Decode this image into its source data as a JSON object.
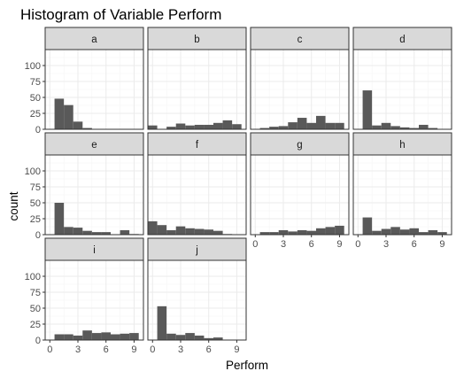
{
  "chart_data": {
    "type": "bar",
    "title": "Histogram of Variable Perform",
    "xlabel": "Perform",
    "ylabel": "count",
    "xlim": [
      -0.5,
      10
    ],
    "ylim": [
      0,
      125
    ],
    "x_ticks": [
      0,
      3,
      6,
      9
    ],
    "y_ticks": [
      0,
      25,
      50,
      75,
      100
    ],
    "grid": true,
    "bin_width": 1,
    "bin_centers": [
      0,
      1,
      2,
      3,
      4,
      5,
      6,
      7,
      8,
      9
    ],
    "colors": {
      "bar": "#595959",
      "strip_fill": "#d9d9d9",
      "panel_border": "#333333",
      "grid_major": "#ebebeb",
      "grid_minor": "#f5f5f5"
    },
    "panels": [
      {
        "name": "a",
        "values": [
          0,
          48,
          38,
          12,
          2,
          0,
          0,
          0,
          0,
          0
        ]
      },
      {
        "name": "b",
        "values": [
          6,
          0,
          4,
          9,
          6,
          7,
          7,
          10,
          14,
          8
        ]
      },
      {
        "name": "c",
        "values": [
          0,
          2,
          4,
          5,
          11,
          18,
          10,
          21,
          10,
          10
        ]
      },
      {
        "name": "d",
        "values": [
          0,
          61,
          6,
          10,
          5,
          3,
          2,
          7,
          2,
          0
        ]
      },
      {
        "name": "e",
        "values": [
          0,
          50,
          12,
          11,
          6,
          4,
          4,
          0,
          7,
          1
        ]
      },
      {
        "name": "f",
        "values": [
          21,
          15,
          7,
          13,
          10,
          9,
          8,
          6,
          1,
          0
        ]
      },
      {
        "name": "g",
        "values": [
          0,
          4,
          4,
          7,
          5,
          7,
          6,
          10,
          12,
          14
        ]
      },
      {
        "name": "h",
        "values": [
          0,
          27,
          6,
          9,
          12,
          8,
          10,
          4,
          7,
          4
        ]
      },
      {
        "name": "i",
        "values": [
          0,
          9,
          9,
          7,
          15,
          11,
          12,
          9,
          10,
          11
        ]
      },
      {
        "name": "j",
        "values": [
          0,
          53,
          10,
          8,
          11,
          7,
          3,
          4,
          0,
          0
        ]
      }
    ]
  }
}
